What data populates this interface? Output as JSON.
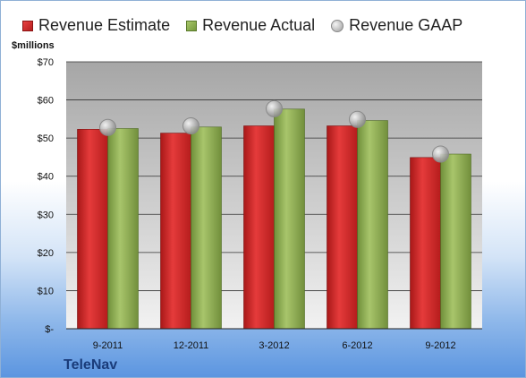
{
  "chart_data": {
    "type": "bar",
    "title": "",
    "ylabel": "$millions",
    "categories": [
      "9-2011",
      "12-2011",
      "3-2012",
      "6-2012",
      "9-2012"
    ],
    "series": [
      {
        "name": "Revenue Estimate",
        "values": [
          52.3,
          51.3,
          53.2,
          53.2,
          44.9
        ],
        "color": "#c82626"
      },
      {
        "name": "Revenue Actual",
        "values": [
          52.5,
          52.9,
          57.6,
          54.6,
          45.8
        ],
        "color": "#8aae4f"
      }
    ],
    "points": {
      "name": "Revenue GAAP",
      "values": [
        52.8,
        53.2,
        57.7,
        54.9,
        45.8
      ]
    },
    "ylim": [
      0,
      70
    ],
    "yticks": [
      0,
      10,
      20,
      30,
      40,
      50,
      60,
      70
    ],
    "ytick_labels": [
      "$-",
      "$10",
      "$20",
      "$30",
      "$40",
      "$50",
      "$60",
      "$70"
    ],
    "legend": "top",
    "grid": true
  },
  "units_label": "$millions",
  "brand": "TeleNav"
}
